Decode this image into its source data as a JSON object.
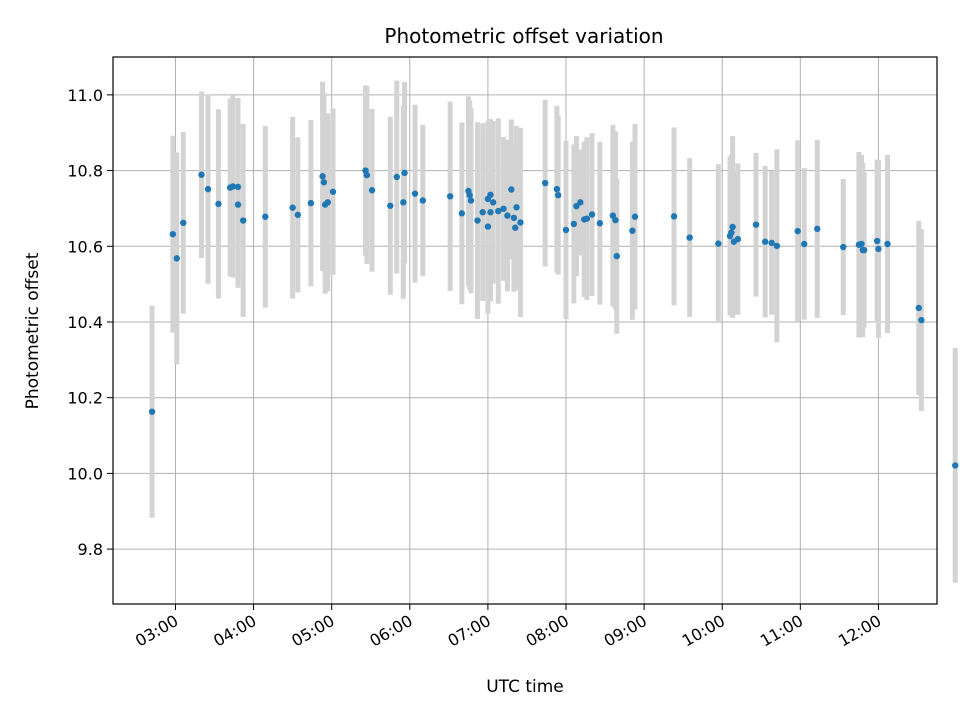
{
  "chart_data": {
    "type": "scatter",
    "title": "Photometric offset variation",
    "xlabel": "UTC time",
    "ylabel": "Photometric offset",
    "x_ticks": [
      "03:00",
      "04:00",
      "05:00",
      "06:00",
      "07:00",
      "08:00",
      "09:00",
      "10:00",
      "11:00",
      "12:00"
    ],
    "y_ticks": [
      "9.8",
      "10.0",
      "10.2",
      "10.4",
      "10.6",
      "10.8",
      "11.0"
    ],
    "xlim": [
      "02:12",
      "12:45"
    ],
    "ylim": [
      9.655,
      11.1
    ],
    "grid": true,
    "colors": {
      "point": "#1f77b4",
      "errorbar": "#d3d3d3",
      "grid": "#b0b0b0"
    },
    "series": [
      {
        "x": [
          "02:42",
          "02:58",
          "03:01",
          "03:06",
          "03:20",
          "03:25",
          "03:33",
          "03:42",
          "03:44",
          "03:48",
          "03:48",
          "03:52",
          "04:09",
          "04:30",
          "04:34",
          "04:44",
          "04:53",
          "04:54",
          "04:55",
          "04:57",
          "05:01",
          "05:26",
          "05:27",
          "05:31",
          "05:45",
          "05:50",
          "05:55",
          "05:56",
          "06:04",
          "06:10",
          "06:31",
          "06:40",
          "06:45",
          "06:46",
          "06:47",
          "06:52",
          "06:56",
          "07:00",
          "07:00",
          "07:02",
          "07:02",
          "07:04",
          "07:08",
          "07:12",
          "07:15",
          "07:18",
          "07:20",
          "07:21",
          "07:22",
          "07:25",
          "07:44",
          "07:53",
          "07:54",
          "08:00",
          "08:06",
          "08:08",
          "08:11",
          "08:14",
          "08:16",
          "08:20",
          "08:26",
          "08:36",
          "08:38",
          "08:39",
          "08:51",
          "08:53",
          "09:23",
          "09:35",
          "09:57",
          "10:06",
          "10:07",
          "10:08",
          "10:09",
          "10:12",
          "10:26",
          "10:33",
          "10:38",
          "10:42",
          "10:58",
          "11:03",
          "11:13",
          "11:33",
          "11:45",
          "11:47",
          "11:48",
          "11:49",
          "11:59",
          "12:00",
          "12:07",
          "12:31",
          "12:33",
          "12:59"
        ],
        "y": [
          10.163,
          10.632,
          10.568,
          10.662,
          10.789,
          10.751,
          10.712,
          10.755,
          10.758,
          10.71,
          10.757,
          10.668,
          10.678,
          10.702,
          10.683,
          10.714,
          10.785,
          10.769,
          10.71,
          10.716,
          10.744,
          10.8,
          10.788,
          10.748,
          10.707,
          10.783,
          10.716,
          10.794,
          10.739,
          10.721,
          10.732,
          10.687,
          10.746,
          10.735,
          10.721,
          10.668,
          10.69,
          10.725,
          10.652,
          10.69,
          10.736,
          10.716,
          10.693,
          10.699,
          10.681,
          10.75,
          10.675,
          10.649,
          10.703,
          10.663,
          10.767,
          10.751,
          10.735,
          10.643,
          10.659,
          10.706,
          10.716,
          10.671,
          10.673,
          10.684,
          10.661,
          10.681,
          10.669,
          10.574,
          10.641,
          10.678,
          10.679,
          10.623,
          10.607,
          10.627,
          10.636,
          10.651,
          10.612,
          10.619,
          10.657,
          10.612,
          10.609,
          10.601,
          10.64,
          10.606,
          10.646,
          10.598,
          10.604,
          10.606,
          10.59,
          10.59,
          10.614,
          10.593,
          10.606,
          10.437,
          10.405,
          10.021
        ],
        "err": [
          0.28,
          0.26,
          0.28,
          0.24,
          0.22,
          0.25,
          0.25,
          0.235,
          0.24,
          0.22,
          0.235,
          0.255,
          0.24,
          0.24,
          0.205,
          0.22,
          0.25,
          0.235,
          0.235,
          0.235,
          0.22,
          0.225,
          0.235,
          0.215,
          0.235,
          0.255,
          0.255,
          0.24,
          0.235,
          0.2,
          0.25,
          0.24,
          0.25,
          0.25,
          0.245,
          0.26,
          0.235,
          0.205,
          0.23,
          0.235,
          0.2,
          0.215,
          0.245,
          0.19,
          0.2,
          0.185,
          0.195,
          0.165,
          0.215,
          0.25,
          0.22,
          0.22,
          0.21,
          0.235,
          0.21,
          0.185,
          0.14,
          0.205,
          0.215,
          0.215,
          0.215,
          0.24,
          0.235,
          0.205,
          0.235,
          0.245,
          0.235,
          0.21,
          0.21,
          0.21,
          0.205,
          0.24,
          0.19,
          0.2,
          0.19,
          0.2,
          0.19,
          0.255,
          0.24,
          0.2,
          0.235,
          0.18,
          0.245,
          0.235,
          0.23,
          0.205,
          0.215,
          0.235,
          0.235,
          0.23,
          0.24,
          0.31
        ]
      }
    ]
  }
}
